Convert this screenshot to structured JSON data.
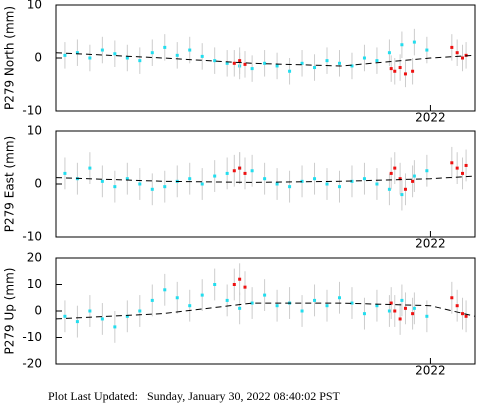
{
  "chart_data": [
    {
      "type": "scatter",
      "ylabel": "P279 North (mm)",
      "xlim": [
        2019.9,
        2022.25
      ],
      "xticks": [
        2022
      ],
      "ylim": [
        -10,
        10
      ],
      "yticks": [
        -10,
        0,
        10
      ],
      "series": [
        {
          "mode": "markers",
          "color": "#22ddee",
          "error": 2.5,
          "x": [
            2019.95,
            2020.02,
            2020.09,
            2020.16,
            2020.23,
            2020.3,
            2020.37,
            2020.44,
            2020.51,
            2020.58,
            2020.65,
            2020.72,
            2020.79,
            2020.86,
            2020.93,
            2021.0,
            2021.07,
            2021.14,
            2021.21,
            2021.28,
            2021.35,
            2021.42,
            2021.49,
            2021.56,
            2021.63,
            2021.7,
            2021.77,
            2021.84,
            2021.91,
            2021.98
          ],
          "values": [
            0.5,
            1,
            0,
            1.5,
            0.8,
            0,
            -0.5,
            1,
            2,
            0.5,
            1.5,
            0.3,
            -0.5,
            -1,
            -1.5,
            -2,
            -1,
            -1.5,
            -2.5,
            -1,
            -1.8,
            -0.5,
            -1,
            -1.5,
            0,
            -0.5,
            1,
            2.5,
            3,
            1.5
          ]
        },
        {
          "mode": "markers",
          "color": "#ee1111",
          "error": 2.5,
          "x": [
            2020.9,
            2020.93,
            2020.96,
            2021.78,
            2021.8,
            2021.83,
            2021.86,
            2021.9,
            2022.12,
            2022.15,
            2022.18,
            2022.2
          ],
          "values": [
            -1,
            -0.5,
            -1.2,
            -2,
            -2.5,
            -1.8,
            -3,
            -2.5,
            2,
            1,
            0,
            0.5
          ]
        },
        {
          "mode": "dashed-line",
          "color": "#000000",
          "x": [
            2019.9,
            2020.5,
            2021.0,
            2021.5,
            2022.0,
            2022.25
          ],
          "values": [
            1,
            0,
            -1,
            -1.5,
            0,
            0.5
          ]
        }
      ]
    },
    {
      "type": "scatter",
      "ylabel": "P279 East (mm)",
      "xlim": [
        2019.9,
        2022.25
      ],
      "xticks": [
        2022
      ],
      "ylim": [
        -10,
        10
      ],
      "yticks": [
        -10,
        0,
        10
      ],
      "series": [
        {
          "mode": "markers",
          "color": "#22ddee",
          "error": 3,
          "x": [
            2019.95,
            2020.02,
            2020.09,
            2020.16,
            2020.23,
            2020.3,
            2020.37,
            2020.44,
            2020.51,
            2020.58,
            2020.65,
            2020.72,
            2020.79,
            2020.86,
            2020.93,
            2021.0,
            2021.07,
            2021.14,
            2021.21,
            2021.28,
            2021.35,
            2021.42,
            2021.49,
            2021.56,
            2021.63,
            2021.7,
            2021.77,
            2021.84,
            2021.91,
            2021.98
          ],
          "values": [
            2,
            1,
            3,
            0.5,
            -0.5,
            1,
            0,
            -1,
            -0.5,
            0.5,
            1,
            0,
            1.5,
            2,
            3,
            2.5,
            1,
            0,
            -0.5,
            0.5,
            1,
            0,
            -0.5,
            0.5,
            1,
            0,
            -1,
            -2,
            1.5,
            2.5
          ]
        },
        {
          "mode": "markers",
          "color": "#ee1111",
          "error": 3,
          "x": [
            2020.9,
            2020.93,
            2020.96,
            2021.78,
            2021.8,
            2021.83,
            2021.86,
            2021.9,
            2022.12,
            2022.15,
            2022.18,
            2022.2
          ],
          "values": [
            2.5,
            3,
            2,
            2,
            3,
            1,
            -1,
            0.5,
            4,
            3,
            2,
            3.5
          ]
        },
        {
          "mode": "dashed-line",
          "color": "#000000",
          "x": [
            2019.9,
            2020.5,
            2021.0,
            2021.5,
            2022.0,
            2022.25
          ],
          "values": [
            1.2,
            0.5,
            0.3,
            0.5,
            1,
            1.5
          ]
        }
      ]
    },
    {
      "type": "scatter",
      "ylabel": "P279 Up (mm)",
      "xlim": [
        2019.9,
        2022.25
      ],
      "xticks": [
        2022
      ],
      "ylim": [
        -20,
        20
      ],
      "yticks": [
        -20,
        -10,
        0,
        10,
        20
      ],
      "series": [
        {
          "mode": "markers",
          "color": "#22ddee",
          "error": 6,
          "x": [
            2019.95,
            2020.02,
            2020.09,
            2020.16,
            2020.23,
            2020.3,
            2020.37,
            2020.44,
            2020.51,
            2020.58,
            2020.65,
            2020.72,
            2020.79,
            2020.86,
            2020.93,
            2021.0,
            2021.07,
            2021.14,
            2021.21,
            2021.28,
            2021.35,
            2021.42,
            2021.49,
            2021.56,
            2021.63,
            2021.7,
            2021.77,
            2021.84,
            2021.91,
            2021.98
          ],
          "values": [
            -2,
            -4,
            0,
            -3,
            -6,
            -2,
            0,
            4,
            8,
            5,
            2,
            6,
            10,
            4,
            1,
            3,
            6,
            2,
            3,
            0,
            4,
            2,
            5,
            3,
            -1,
            2,
            0,
            4,
            1,
            -2
          ]
        },
        {
          "mode": "markers",
          "color": "#ee1111",
          "error": 6,
          "x": [
            2020.9,
            2020.93,
            2020.96,
            2021.78,
            2021.8,
            2021.83,
            2021.86,
            2021.9,
            2022.12,
            2022.15,
            2022.18,
            2022.2
          ],
          "values": [
            10,
            12,
            9,
            3,
            0,
            -3,
            1,
            -1,
            5,
            2,
            -1,
            -2
          ]
        },
        {
          "mode": "dashed-line",
          "color": "#000000",
          "x": [
            2019.9,
            2020.5,
            2021.0,
            2021.5,
            2022.0,
            2022.25
          ],
          "values": [
            -3,
            -1,
            3,
            3,
            2,
            -2
          ]
        }
      ]
    }
  ],
  "footer": {
    "label": "Plot Last Updated:",
    "value": "Sunday, January 30, 2022 08:40:02 PST"
  }
}
